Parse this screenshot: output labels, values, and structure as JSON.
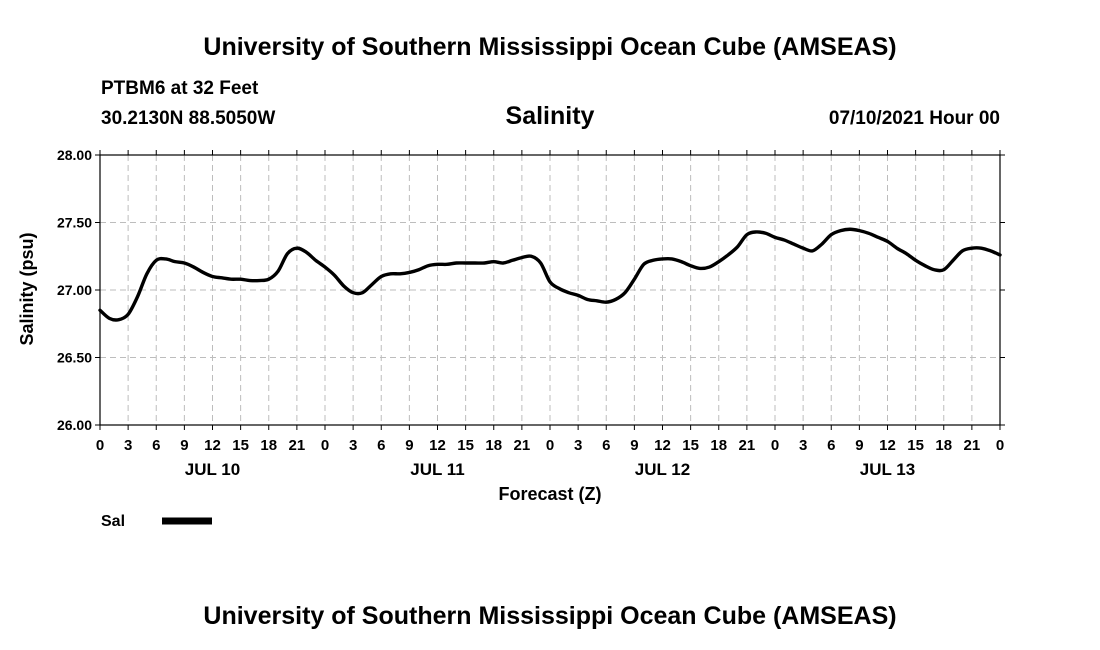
{
  "header": {
    "title": "University of Southern Mississippi Ocean Cube (AMSEAS)",
    "station": "PTBM6 at 32 Feet",
    "coords": "30.2130N  88.5050W",
    "variable": "Salinity",
    "datetime": "07/10/2021 Hour 00"
  },
  "footer": {
    "title": "University of Southern Mississippi Ocean Cube (AMSEAS)"
  },
  "legend": {
    "label": "Sal",
    "color": "#000000"
  },
  "chart_data": {
    "type": "line",
    "title": "Salinity",
    "xlabel": "Forecast (Z)",
    "ylabel": "Salinity (psu)",
    "ylim": [
      26.0,
      28.0
    ],
    "xlim": [
      0,
      96
    ],
    "grid": true,
    "legend_position": "bottom-left",
    "y_ticks": [
      "26.00",
      "26.50",
      "27.00",
      "27.50",
      "28.00"
    ],
    "y_tick_values": [
      26.0,
      26.5,
      27.0,
      27.5,
      28.0
    ],
    "x_ticks": [
      0,
      3,
      6,
      9,
      12,
      15,
      18,
      21,
      24,
      27,
      30,
      33,
      36,
      39,
      42,
      45,
      48,
      51,
      54,
      57,
      60,
      63,
      66,
      69,
      72,
      75,
      78,
      81,
      84,
      87,
      90,
      93,
      96
    ],
    "x_tick_labels": [
      "0",
      "3",
      "6",
      "9",
      "12",
      "15",
      "18",
      "21",
      "0",
      "3",
      "6",
      "9",
      "12",
      "15",
      "18",
      "21",
      "0",
      "3",
      "6",
      "9",
      "12",
      "15",
      "18",
      "21",
      "0",
      "3",
      "6",
      "9",
      "12",
      "15",
      "18",
      "21",
      "0"
    ],
    "day_labels": [
      {
        "label": "JUL 10",
        "hour": 12
      },
      {
        "label": "JUL 11",
        "hour": 36
      },
      {
        "label": "JUL 12",
        "hour": 60
      },
      {
        "label": "JUL 13",
        "hour": 84
      }
    ],
    "series": [
      {
        "name": "Sal",
        "color": "#000000",
        "x": [
          0,
          1,
          2,
          3,
          4,
          5,
          6,
          7,
          8,
          9,
          10,
          11,
          12,
          13,
          14,
          15,
          16,
          17,
          18,
          19,
          20,
          21,
          22,
          23,
          24,
          25,
          26,
          27,
          28,
          29,
          30,
          31,
          32,
          33,
          34,
          35,
          36,
          37,
          38,
          39,
          40,
          41,
          42,
          43,
          44,
          45,
          46,
          47,
          48,
          49,
          50,
          51,
          52,
          53,
          54,
          55,
          56,
          57,
          58,
          59,
          60,
          61,
          62,
          63,
          64,
          65,
          66,
          67,
          68,
          69,
          70,
          71,
          72,
          73,
          74,
          75,
          76,
          77,
          78,
          79,
          80,
          81,
          82,
          83,
          84,
          85,
          86,
          87,
          88,
          89,
          90,
          91,
          92,
          93,
          94,
          95,
          96
        ],
        "values": [
          26.85,
          26.79,
          26.78,
          26.82,
          26.95,
          27.12,
          27.22,
          27.23,
          27.21,
          27.2,
          27.17,
          27.13,
          27.1,
          27.09,
          27.08,
          27.08,
          27.07,
          27.07,
          27.08,
          27.14,
          27.27,
          27.31,
          27.28,
          27.22,
          27.17,
          27.11,
          27.03,
          26.98,
          26.98,
          27.04,
          27.1,
          27.12,
          27.12,
          27.13,
          27.15,
          27.18,
          27.19,
          27.19,
          27.2,
          27.2,
          27.2,
          27.2,
          27.21,
          27.2,
          27.22,
          27.24,
          27.25,
          27.2,
          27.06,
          27.01,
          26.98,
          26.96,
          26.93,
          26.92,
          26.91,
          26.93,
          26.98,
          27.08,
          27.19,
          27.22,
          27.23,
          27.23,
          27.21,
          27.18,
          27.16,
          27.17,
          27.21,
          27.26,
          27.32,
          27.41,
          27.43,
          27.42,
          27.39,
          27.37,
          27.34,
          27.31,
          27.29,
          27.34,
          27.41,
          27.44,
          27.45,
          27.44,
          27.42,
          27.39,
          27.36,
          27.31,
          27.27,
          27.22,
          27.18,
          27.15,
          27.15,
          27.22,
          27.29,
          27.31,
          27.31,
          27.29,
          27.26
        ]
      }
    ]
  }
}
